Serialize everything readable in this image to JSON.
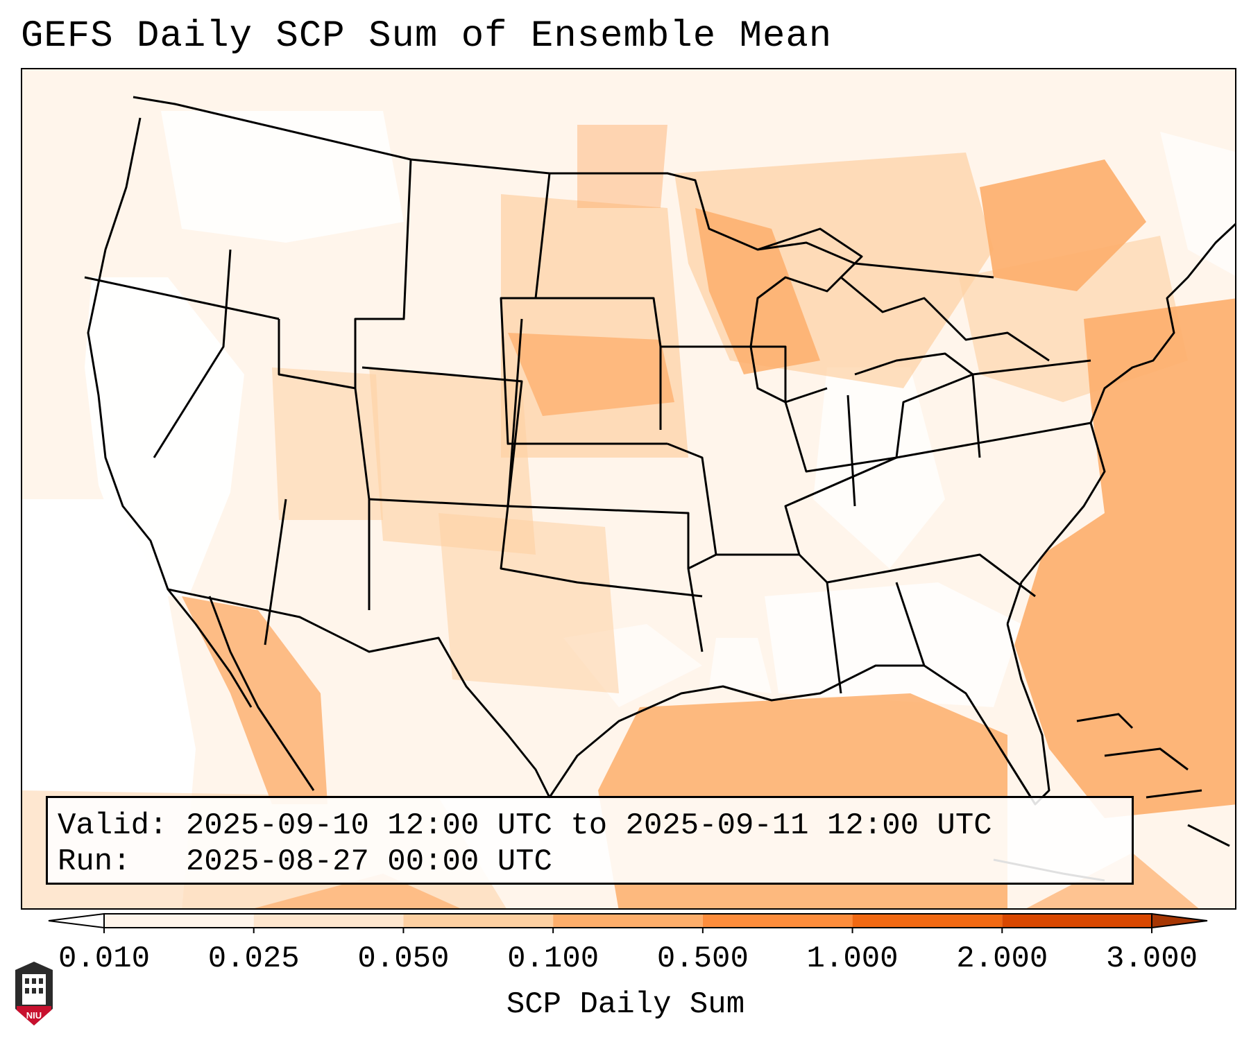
{
  "title": "GEFS Daily SCP Sum of Ensemble Mean",
  "info": {
    "valid_label": "Valid:",
    "valid_value": "2025-09-10 12:00 UTC to 2025-09-11 12:00 UTC",
    "run_label": "Run:  ",
    "run_value": "2025-08-27 00:00 UTC"
  },
  "colorbar": {
    "label": "SCP Daily Sum",
    "ticks": [
      "0.010",
      "0.025",
      "0.050",
      "0.100",
      "0.500",
      "1.000",
      "2.000",
      "3.000"
    ],
    "colors": [
      "#fff5eb",
      "#fee6ce",
      "#fdd0a2",
      "#fdae6b",
      "#fd8d3c",
      "#f16913",
      "#d94801",
      "#a63603"
    ],
    "under_color": "#ffffff",
    "over_color": "#7f2704"
  },
  "logo": {
    "text": "NIU",
    "bg_color": "#c8102e"
  },
  "map_palette": {
    "white": "#ffffff",
    "level1": "#fff5eb",
    "level2": "#fee6ce",
    "level3": "#fdd0a2",
    "level4": "#fdae6b"
  }
}
